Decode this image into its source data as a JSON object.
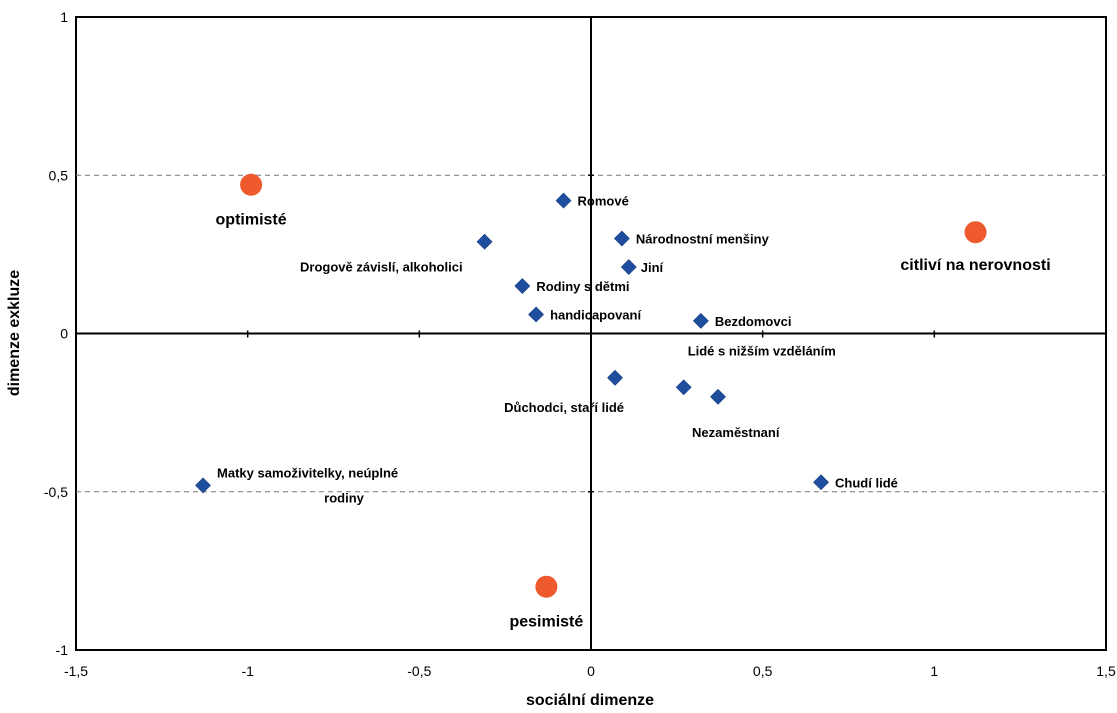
{
  "chart_data": {
    "type": "scatter",
    "xlabel": "sociální dimenze",
    "ylabel": "dimenze exkluze",
    "xlim": [
      -1.5,
      1.5
    ],
    "ylim": [
      -1,
      1
    ],
    "x_ticks": [
      "-1,5",
      "-1",
      "-0,5",
      "0",
      "0,5",
      "1",
      "1,5"
    ],
    "y_ticks": [
      "-1",
      "-0,5",
      "0",
      "0,5",
      "1"
    ],
    "reference_lines_y": [
      0.5,
      -0.5
    ],
    "grid": false,
    "colors": {
      "items": "#1F4E9E",
      "groups": "#EE5A2E"
    },
    "series": [
      {
        "marker": "diamond",
        "points": [
          {
            "label": "Romové",
            "x": -0.08,
            "y": 0.42
          },
          {
            "label": "Národnostní menšiny",
            "x": 0.09,
            "y": 0.3
          },
          {
            "label": "Drogově závislí, alkoholici",
            "x": -0.31,
            "y": 0.29
          },
          {
            "label": "Jiní",
            "x": 0.11,
            "y": 0.21
          },
          {
            "label": "Rodiny s dětmi",
            "x": -0.2,
            "y": 0.15
          },
          {
            "label": "handicapovaní",
            "x": -0.16,
            "y": 0.06
          },
          {
            "label": "Bezdomovci",
            "x": 0.32,
            "y": 0.04
          },
          {
            "label": "Lidé s nižším vzděláním",
            "x": 0.27,
            "y": -0.17
          },
          {
            "label": "Důchodci, staří lidé",
            "x": 0.07,
            "y": -0.14
          },
          {
            "label": "Nezaměstnaní",
            "x": 0.37,
            "y": -0.2
          },
          {
            "label": "Chudí lidé",
            "x": 0.67,
            "y": -0.47
          },
          {
            "label": "Matky samoživitelky, neúplné rodiny",
            "x": -1.13,
            "y": -0.48
          }
        ]
      },
      {
        "marker": "circle",
        "points": [
          {
            "label": "optimisté",
            "x": -0.99,
            "y": 0.47
          },
          {
            "label": "citliví na nerovnosti",
            "x": 1.12,
            "y": 0.32
          },
          {
            "label": "pesimisté",
            "x": -0.13,
            "y": -0.8
          }
        ]
      }
    ]
  }
}
